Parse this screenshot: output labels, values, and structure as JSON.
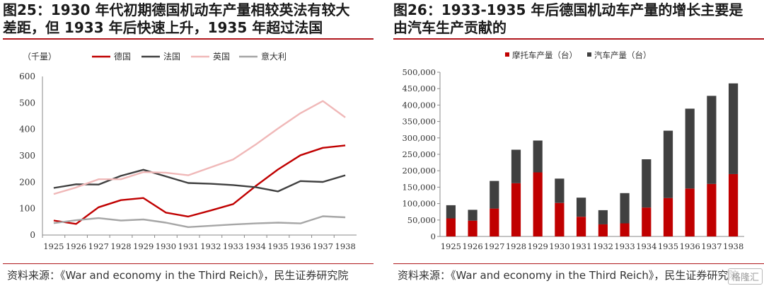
{
  "left": {
    "title_line1": "图25：1930 年代初期德国机动车产量相较英法有较大",
    "title_line2": "差距，但 1933 年后快速上升，1935 年超过法国",
    "source": "资料来源：《War and economy in the Third Reich》，民生证券研究院"
  },
  "right": {
    "title_line1": "图26：1933-1935 年后德国机动车产量的增长主要是",
    "title_line2": "由汽车生产贡献的",
    "source": "资料来源：《War and economy in the Third Reich》，民生证券研究院"
  },
  "watermark": "格隆汇",
  "colors": {
    "red": "#c00000",
    "dark": "#404040",
    "pink": "#f0b8b8",
    "gray": "#a6a6a6"
  },
  "chart_data": [
    {
      "type": "line",
      "unit_label": "（千量）",
      "x": [
        1925,
        1926,
        1927,
        1928,
        1929,
        1930,
        1931,
        1932,
        1933,
        1934,
        1935,
        1936,
        1937,
        1938
      ],
      "ylim": [
        0,
        600
      ],
      "yticks": [
        0,
        100,
        200,
        300,
        400,
        500,
        600
      ],
      "legend_position": "top",
      "series": [
        {
          "name": "德国",
          "color": "#c00000",
          "values": [
            55,
            42,
            105,
            132,
            140,
            85,
            70,
            93,
            117,
            185,
            248,
            302,
            330,
            339
          ]
        },
        {
          "name": "法国",
          "color": "#404040",
          "values": [
            178,
            192,
            191,
            224,
            247,
            222,
            197,
            194,
            189,
            181,
            165,
            204,
            201,
            226
          ]
        },
        {
          "name": "英国",
          "color": "#f0b8b8",
          "values": [
            155,
            180,
            211,
            211,
            238,
            236,
            226,
            256,
            286,
            342,
            403,
            461,
            507,
            445
          ]
        },
        {
          "name": "意大利",
          "color": "#a6a6a6",
          "values": [
            45,
            56,
            64,
            55,
            59,
            47,
            30,
            35,
            40,
            44,
            47,
            44,
            71,
            67
          ]
        }
      ]
    },
    {
      "type": "bar",
      "stacked": true,
      "categories": [
        1925,
        1926,
        1927,
        1928,
        1929,
        1930,
        1931,
        1932,
        1933,
        1934,
        1935,
        1936,
        1937,
        1938
      ],
      "ylim": [
        0,
        500000
      ],
      "yticks": [
        0,
        50000,
        100000,
        150000,
        200000,
        250000,
        300000,
        350000,
        400000,
        450000,
        500000
      ],
      "ytick_labels": [
        "0",
        "50,000",
        "100,000",
        "150,000",
        "200,000",
        "250,000",
        "300,000",
        "350,000",
        "400,000",
        "450,000",
        "500,000"
      ],
      "legend_position": "top",
      "series": [
        {
          "name": "摩托车产量（台）",
          "color": "#c00000",
          "values": [
            55000,
            48000,
            85000,
            162000,
            195000,
            102000,
            60000,
            37000,
            40000,
            88000,
            117000,
            146000,
            160000,
            190000
          ]
        },
        {
          "name": "汽车产量（台）",
          "color": "#404040",
          "values": [
            40000,
            33000,
            84000,
            102000,
            97000,
            74000,
            58000,
            43000,
            92000,
            147000,
            205000,
            243000,
            268000,
            276000
          ]
        }
      ]
    }
  ]
}
